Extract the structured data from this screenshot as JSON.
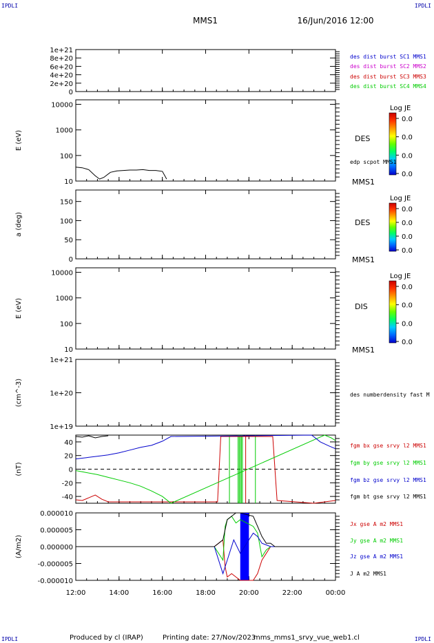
{
  "header": {
    "spacecraft": "MMS1",
    "datetime": "16/Jun/2016 12:00",
    "corner_tl": "IPDLI",
    "corner_tr": "IPDLI",
    "corner_bl": "IPDLI",
    "corner_br": "IPDLI"
  },
  "footer": {
    "produced_by": "Produced by cl (IRAP)",
    "printing_date": "Printing date: 27/Nov/2023",
    "script_name": "mms_mms1_srvy_vue_web1.cl"
  },
  "time_axis": {
    "ticks": [
      "12:00",
      "14:00",
      "16:00",
      "18:00",
      "20:00",
      "22:00",
      "00:00"
    ],
    "range_hours": [
      12,
      24
    ]
  },
  "colorbar": {
    "title": "Log JE",
    "values": [
      "0.0",
      "0.0",
      "0.0",
      "0.0"
    ]
  },
  "colors": {
    "black": "#000000",
    "blue": "#0000cc",
    "magenta": "#cc00cc",
    "red": "#cc0000",
    "green": "#00cc00"
  },
  "chart_data": [
    {
      "type": "line",
      "panel": "des-dist-burst",
      "ylabel": "",
      "yticks": [
        "1e+21",
        "8e+20",
        "6e+20",
        "4e+20",
        "2e+20",
        "0"
      ],
      "ylim": [
        0,
        1e+21
      ],
      "series": [
        {
          "name": "des dist burst SC1 MMS1",
          "color": "#0000cc"
        },
        {
          "name": "des dist burst SC2 MMS2",
          "color": "#cc00cc"
        },
        {
          "name": "des dist burst SC3 MMS3",
          "color": "#cc0000"
        },
        {
          "name": "des dist burst SC4 MMS4",
          "color": "#00cc00"
        }
      ],
      "dashed_zero": true
    },
    {
      "type": "line",
      "panel": "des-energy",
      "ylabel": "E (eV)",
      "scale": "log",
      "yticks": [
        "10000",
        "1000",
        "100",
        "10"
      ],
      "ylim": [
        10,
        15000
      ],
      "side_label": "DES",
      "mms_label": "MMS1",
      "series": [
        {
          "name": "edp scpot MMS1",
          "color": "#000000",
          "x": [
            12.0,
            12.3,
            12.6,
            12.9,
            13.1,
            13.3,
            13.6,
            13.9,
            14.2,
            14.5,
            14.8,
            15.1,
            15.4,
            15.7,
            16.0,
            16.2
          ],
          "y": [
            35,
            33,
            28,
            16,
            12,
            14,
            22,
            25,
            26,
            27,
            27,
            28,
            26,
            26,
            24,
            12
          ]
        }
      ]
    },
    {
      "type": "heatmap",
      "panel": "des-pitch",
      "ylabel": "a (deg)",
      "yticks": [
        "150",
        "100",
        "50",
        "0"
      ],
      "ylim": [
        0,
        180
      ],
      "side_label": "DES",
      "mms_label": "MMS1"
    },
    {
      "type": "heatmap",
      "panel": "dis-energy",
      "ylabel": "E (eV)",
      "scale": "log",
      "yticks": [
        "10000",
        "1000",
        "100",
        "10"
      ],
      "ylim": [
        10,
        15000
      ],
      "side_label": "DIS",
      "mms_label": "MMS1"
    },
    {
      "type": "line",
      "panel": "des-density",
      "ylabel": "(cm^-3)",
      "scale": "log",
      "yticks": [
        "1e+21",
        "1e+20",
        "1e+19"
      ],
      "ylim": [
        1e+19,
        1e+21
      ],
      "series": [
        {
          "name": "des numberdensity fast M",
          "color": "#000000"
        }
      ]
    },
    {
      "type": "line",
      "panel": "fgm",
      "ylabel": "(nT)",
      "yticks": [
        "40",
        "20",
        "0",
        "-20",
        "-40"
      ],
      "ylim": [
        -50,
        50
      ],
      "dashed_zero": true,
      "series": [
        {
          "name": "fgm bx gse srvy l2 MMS1",
          "color": "#cc0000",
          "x": [
            12.0,
            12.3,
            12.6,
            12.9,
            13.2,
            13.5,
            18.55,
            18.7,
            21.1,
            21.3,
            23.0,
            23.5,
            24.0
          ],
          "y": [
            -45,
            -46,
            -42,
            -38,
            -44,
            -48,
            -48,
            48,
            48,
            -46,
            -50,
            -48,
            -46
          ]
        },
        {
          "name": "fgm by gse srvy l2 MMS1",
          "color": "#00cc00",
          "x": [
            12.0,
            12.5,
            13.0,
            13.5,
            14.0,
            14.5,
            15.0,
            15.5,
            16.0,
            16.4,
            23.5,
            23.8,
            24.0
          ],
          "y": [
            -2,
            -5,
            -8,
            -12,
            -16,
            -20,
            -25,
            -32,
            -40,
            -50,
            50,
            46,
            42
          ]
        },
        {
          "name": "fgm bz gse srvy l2 MMS1",
          "color": "#0000cc",
          "x": [
            12.0,
            12.5,
            13.0,
            13.5,
            14.0,
            14.5,
            15.0,
            15.5,
            16.0,
            16.4,
            22.9,
            23.3,
            23.7,
            24.0
          ],
          "y": [
            15,
            17,
            19,
            21,
            24,
            28,
            32,
            35,
            41,
            48,
            50,
            40,
            34,
            30
          ]
        },
        {
          "name": "fgm bt gse srvy l2 MMS1",
          "color": "#000000",
          "x": [
            12.0,
            12.3,
            12.6,
            12.9,
            13.2,
            13.5
          ],
          "y": [
            48,
            47,
            49,
            46,
            48,
            49
          ]
        }
      ]
    },
    {
      "type": "line",
      "panel": "current",
      "ylabel": "(A/m2)",
      "yticks": [
        "0.000010",
        "0.000005",
        "0.000000",
        "-0.000005",
        "-0.000010"
      ],
      "ylim": [
        -1e-05,
        1e-05
      ],
      "series": [
        {
          "name": "Jx gse A m2 MMS1",
          "color": "#cc0000",
          "x": [
            12.0,
            18.4,
            18.8,
            18.9,
            19.0,
            19.2,
            19.4,
            19.6,
            20.2,
            20.4,
            20.6,
            20.8,
            21.0,
            24.0
          ],
          "y": [
            0,
            0,
            2e-06,
            -6e-06,
            -9e-06,
            -8e-06,
            -9e-06,
            -1e-05,
            -1e-05,
            -8e-06,
            -4e-06,
            -2e-06,
            0,
            0
          ]
        },
        {
          "name": "Jy gse A m2 MMS1",
          "color": "#00cc00",
          "x": [
            12.0,
            18.4,
            18.8,
            18.9,
            19.0,
            19.2,
            19.4,
            19.6,
            20.2,
            20.4,
            20.6,
            20.8,
            21.0,
            24.0
          ],
          "y": [
            0,
            0,
            -4e-06,
            6e-06,
            8e-06,
            9e-06,
            7e-06,
            8e-06,
            6e-06,
            4e-06,
            -3e-06,
            -1e-06,
            0,
            0
          ]
        },
        {
          "name": "Jz gse A m2 MMS1",
          "color": "#0000cc",
          "x": [
            12.0,
            18.4,
            18.8,
            19.0,
            19.3,
            19.6,
            20.2,
            20.4,
            20.6,
            20.8,
            21.0,
            24.0
          ],
          "y": [
            0,
            0,
            -8e-06,
            -4e-06,
            2e-06,
            -2e-06,
            4e-06,
            3e-06,
            1e-06,
            5e-07,
            0,
            0
          ]
        },
        {
          "name": "J A m2 MMS1",
          "color": "#000000",
          "x": [
            12.0,
            18.4,
            18.8,
            19.0,
            19.2,
            19.4,
            19.6,
            20.2,
            20.4,
            20.6,
            20.8,
            21.0,
            21.2,
            24.0
          ],
          "y": [
            0,
            0,
            2e-06,
            8e-06,
            9e-06,
            1e-05,
            1e-05,
            9e-06,
            6e-06,
            3e-06,
            1e-06,
            1e-06,
            0,
            0
          ]
        }
      ],
      "blue_band": [
        19.6,
        20.0
      ]
    }
  ]
}
